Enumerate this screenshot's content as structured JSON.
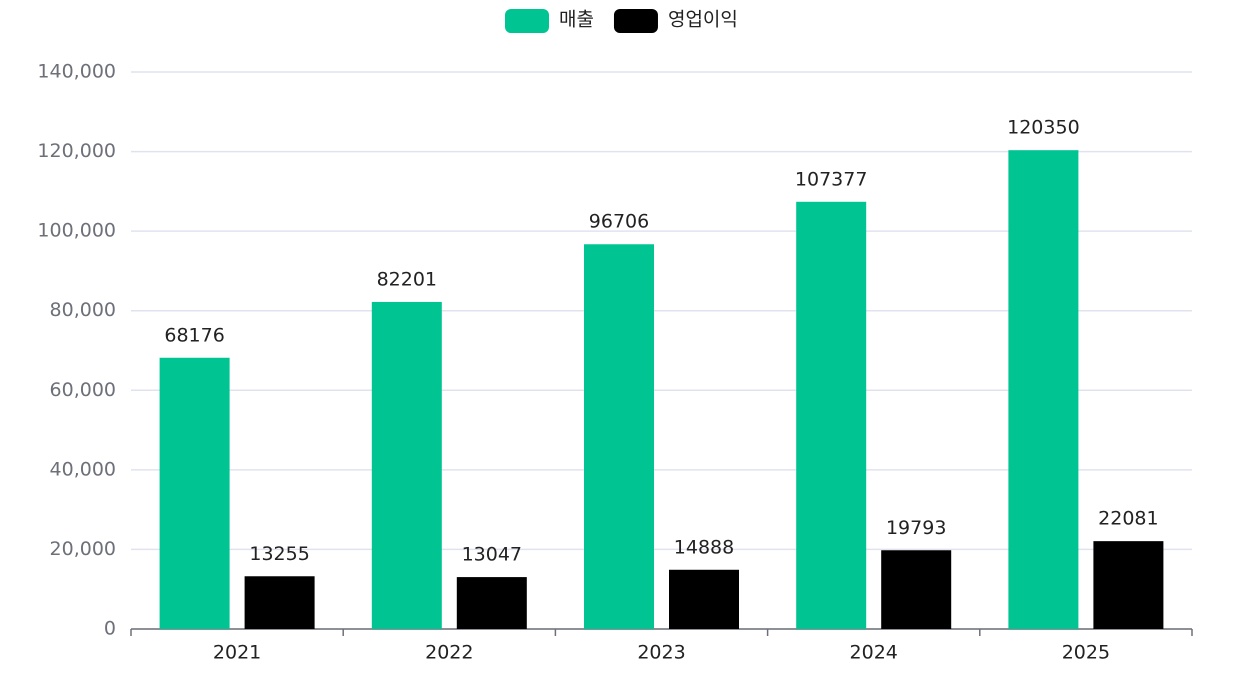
{
  "chart_data": {
    "type": "bar",
    "categories": [
      "2021",
      "2022",
      "2023",
      "2024",
      "2025"
    ],
    "series": [
      {
        "name": "매출",
        "color": "#00c592",
        "values": [
          68176,
          82201,
          96706,
          107377,
          120350
        ]
      },
      {
        "name": "영업이익",
        "color": "#000000",
        "values": [
          13255,
          13047,
          14888,
          19793,
          22081
        ]
      }
    ],
    "ylim": [
      0,
      140000
    ],
    "yticks": [
      0,
      {
        "value": 20000,
        "label": "20,000"
      },
      {
        "value": 40000,
        "label": "40,000"
      },
      {
        "value": 60000,
        "label": "60,000"
      },
      {
        "value": 80000,
        "label": "80,000"
      },
      {
        "value": 100000,
        "label": "100,000"
      },
      {
        "value": 120000,
        "label": "120,000"
      },
      {
        "value": 140000,
        "label": "140,000"
      }
    ],
    "grid": true,
    "legend": "top"
  }
}
